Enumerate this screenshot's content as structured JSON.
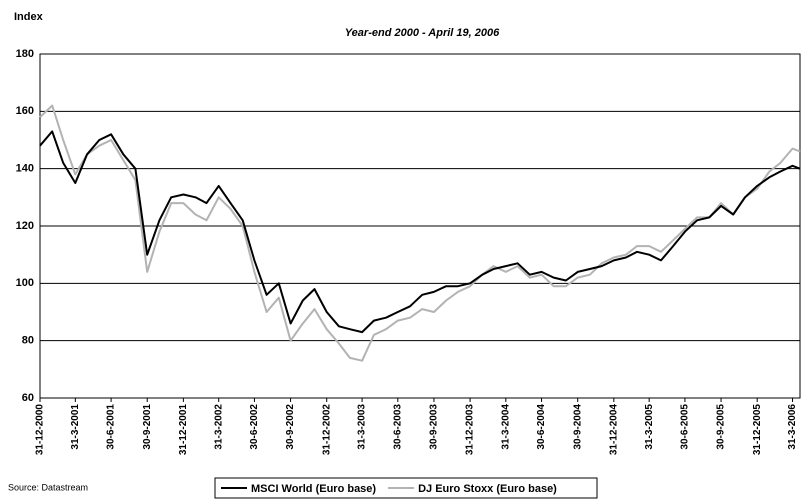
{
  "chart_data": {
    "type": "line",
    "title": "Year-end 2000  -  April 19, 2006",
    "y_label": "Index",
    "source": "Source: Datastream",
    "x": [
      "2000-12-31",
      "2001-01-31",
      "2001-02-28",
      "2001-03-31",
      "2001-04-30",
      "2001-05-31",
      "2001-06-30",
      "2001-07-31",
      "2001-08-31",
      "2001-09-30",
      "2001-10-31",
      "2001-11-30",
      "2001-12-31",
      "2002-01-31",
      "2002-02-28",
      "2002-03-31",
      "2002-04-30",
      "2002-05-31",
      "2002-06-30",
      "2002-07-31",
      "2002-08-31",
      "2002-09-30",
      "2002-10-31",
      "2002-11-30",
      "2002-12-31",
      "2003-01-31",
      "2003-02-28",
      "2003-03-31",
      "2003-04-30",
      "2003-05-31",
      "2003-06-30",
      "2003-07-31",
      "2003-08-31",
      "2003-09-30",
      "2003-10-31",
      "2003-11-30",
      "2003-12-31",
      "2004-01-31",
      "2004-02-29",
      "2004-03-31",
      "2004-04-30",
      "2004-05-31",
      "2004-06-30",
      "2004-07-31",
      "2004-08-31",
      "2004-09-30",
      "2004-10-31",
      "2004-11-30",
      "2004-12-31",
      "2005-01-31",
      "2005-02-28",
      "2005-03-31",
      "2005-04-30",
      "2005-05-31",
      "2005-06-30",
      "2005-07-31",
      "2005-08-31",
      "2005-09-30",
      "2005-10-31",
      "2005-11-30",
      "2005-12-31",
      "2006-01-31",
      "2006-02-28",
      "2006-03-31",
      "2006-04-19"
    ],
    "series": [
      {
        "name": "MSCI World (Euro base)",
        "color": "#000000",
        "values": [
          148,
          153,
          142,
          135,
          145,
          150,
          152,
          145,
          140,
          110,
          122,
          130,
          131,
          130,
          128,
          134,
          128,
          122,
          108,
          96,
          100,
          86,
          94,
          98,
          90,
          85,
          84,
          83,
          87,
          88,
          90,
          92,
          96,
          97,
          99,
          99,
          100,
          103,
          105,
          106,
          107,
          103,
          104,
          102,
          101,
          104,
          105,
          106,
          108,
          109,
          111,
          110,
          108,
          113,
          118,
          122,
          123,
          127,
          124,
          130,
          134,
          137,
          139,
          141,
          140
        ]
      },
      {
        "name": "DJ Euro Stoxx (Euro base)",
        "color": "#b3b3b3",
        "values": [
          158,
          162,
          150,
          138,
          145,
          148,
          150,
          143,
          136,
          104,
          118,
          128,
          128,
          124,
          122,
          130,
          126,
          120,
          104,
          90,
          95,
          80,
          86,
          91,
          84,
          79,
          74,
          73,
          82,
          84,
          87,
          88,
          91,
          90,
          94,
          97,
          99,
          103,
          106,
          104,
          106,
          102,
          103,
          99,
          99,
          102,
          103,
          107,
          109,
          110,
          113,
          113,
          111,
          115,
          119,
          123,
          123,
          128,
          124,
          130,
          133,
          139,
          142,
          147,
          146
        ]
      }
    ],
    "xlim": [
      "2000-12-31",
      "2006-04-19"
    ],
    "xticks": [
      {
        "value": "2000-12-31",
        "label": "31-12-2000"
      },
      {
        "value": "2001-03-31",
        "label": "31-3-2001"
      },
      {
        "value": "2001-06-30",
        "label": "30-6-2001"
      },
      {
        "value": "2001-09-30",
        "label": "30-9-2001"
      },
      {
        "value": "2001-12-31",
        "label": "31-12-2001"
      },
      {
        "value": "2002-03-31",
        "label": "31-3-2002"
      },
      {
        "value": "2002-06-30",
        "label": "30-6-2002"
      },
      {
        "value": "2002-09-30",
        "label": "30-9-2002"
      },
      {
        "value": "2002-12-31",
        "label": "31-12-2002"
      },
      {
        "value": "2003-03-31",
        "label": "31-3-2003"
      },
      {
        "value": "2003-06-30",
        "label": "30-6-2003"
      },
      {
        "value": "2003-09-30",
        "label": "30-9-2003"
      },
      {
        "value": "2003-12-31",
        "label": "31-12-2003"
      },
      {
        "value": "2004-03-31",
        "label": "31-3-2004"
      },
      {
        "value": "2004-06-30",
        "label": "30-6-2004"
      },
      {
        "value": "2004-09-30",
        "label": "30-9-2004"
      },
      {
        "value": "2004-12-31",
        "label": "31-12-2004"
      },
      {
        "value": "2005-03-31",
        "label": "31-3-2005"
      },
      {
        "value": "2005-06-30",
        "label": "30-6-2005"
      },
      {
        "value": "2005-09-30",
        "label": "30-9-2005"
      },
      {
        "value": "2005-12-31",
        "label": "31-12-2005"
      },
      {
        "value": "2006-03-31",
        "label": "31-3-2006"
      }
    ],
    "ylim": [
      60,
      180
    ],
    "yticks": [
      60,
      80,
      100,
      120,
      140,
      160,
      180
    ],
    "grid": true,
    "legend": "bottom"
  }
}
